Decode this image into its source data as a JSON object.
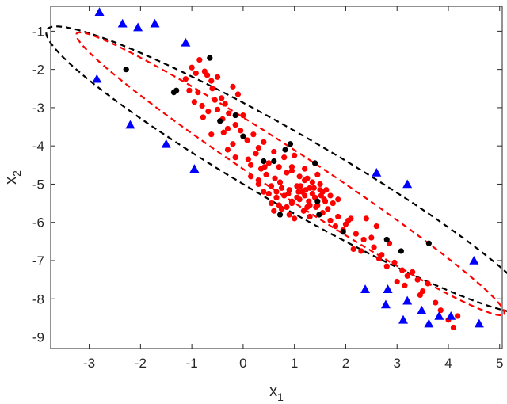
{
  "chart_data": {
    "type": "scatter",
    "xlabel": "x",
    "xlabel_sub": "1",
    "ylabel": "x",
    "ylabel_sub": "2",
    "xlim": [
      -3.75,
      5.05
    ],
    "ylim": [
      -9.3,
      -0.35
    ],
    "xticks": [
      -3,
      -2,
      -1,
      0,
      1,
      2,
      3,
      4,
      5
    ],
    "yticks": [
      -9,
      -8,
      -7,
      -6,
      -5,
      -4,
      -3,
      -2,
      -1
    ],
    "grid": false,
    "box": true,
    "colors": {
      "red": "#ff0000",
      "black": "#000000",
      "blue": "#0000ff",
      "axis": "#262626"
    },
    "ellipses": [
      {
        "color": "#000000",
        "center": [
          0.92,
          -4.63
        ],
        "semi_major": 6.0,
        "semi_minor": 0.86,
        "angle_deg": -38.0
      },
      {
        "color": "#ff0000",
        "center": [
          0.92,
          -4.73
        ],
        "semi_major": 5.55,
        "semi_minor": 0.52,
        "angle_deg": -41.5
      }
    ],
    "series": [
      {
        "marker": "circle",
        "color": "#ff0000",
        "x": [
          -1.0,
          -1.12,
          -0.85,
          -0.92,
          -0.75,
          -0.7,
          -0.62,
          -1.05,
          -0.95,
          -0.8,
          -0.6,
          -0.5,
          -0.88,
          -0.78,
          -0.55,
          -0.42,
          -0.5,
          -0.35,
          -0.68,
          -0.4,
          -0.28,
          -0.2,
          -0.1,
          -0.45,
          -0.3,
          -0.15,
          0.0,
          -0.62,
          -0.38,
          -0.2,
          -0.05,
          0.08,
          -0.3,
          -0.15,
          0.2,
          0.3,
          0.1,
          0.25,
          0.4,
          0.15,
          0.35,
          0.5,
          0.6,
          0.3,
          0.45,
          0.55,
          0.7,
          0.8,
          0.62,
          0.75,
          0.85,
          0.95,
          1.0,
          0.5,
          0.65,
          0.9,
          1.1,
          1.2,
          0.3,
          0.55,
          0.8,
          1.05,
          1.25,
          1.35,
          1.45,
          0.4,
          0.7,
          0.95,
          1.15,
          1.3,
          1.5,
          0.6,
          0.85,
          1.05,
          1.2,
          1.35,
          1.5,
          1.6,
          0.75,
          0.95,
          1.1,
          1.25,
          1.4,
          1.55,
          1.7,
          0.9,
          1.0,
          1.18,
          1.3,
          1.45,
          1.65,
          1.75,
          1.85,
          1.12,
          1.22,
          1.38,
          1.52,
          1.28,
          1.42,
          1.58,
          0.65,
          1.55,
          1.7,
          1.85,
          2.0,
          1.95,
          2.1,
          1.8,
          2.2,
          2.35,
          2.5,
          2.05,
          2.55,
          2.7,
          2.85,
          2.3,
          2.65,
          2.8,
          2.95,
          3.1,
          3.2,
          3.0,
          3.15,
          3.3,
          3.4,
          3.5,
          3.6,
          3.45,
          3.75,
          3.85,
          4.0,
          4.1,
          4.18,
          0.15,
          0.42,
          0.72,
          0.95,
          1.2,
          1.08,
          1.3,
          0.88,
          1.62,
          2.4,
          2.6,
          2.15
        ],
        "y": [
          -1.95,
          -2.25,
          -1.75,
          -2.1,
          -2.05,
          -2.15,
          -2.3,
          -2.55,
          -2.85,
          -2.95,
          -2.5,
          -2.2,
          -2.6,
          -3.25,
          -2.8,
          -2.75,
          -3.05,
          -2.9,
          -3.1,
          -3.3,
          -3.15,
          -2.45,
          -2.65,
          -3.35,
          -3.55,
          -3.45,
          -3.2,
          -3.7,
          -3.65,
          -3.95,
          -3.6,
          -3.85,
          -4.1,
          -4.3,
          -3.7,
          -4.05,
          -4.35,
          -4.2,
          -3.9,
          -4.5,
          -4.6,
          -4.45,
          -4.15,
          -4.9,
          -4.75,
          -5.05,
          -4.55,
          -4.3,
          -4.85,
          -5.1,
          -4.7,
          -4.55,
          -4.25,
          -5.25,
          -5.35,
          -5.15,
          -4.8,
          -4.6,
          -5.0,
          -5.5,
          -5.3,
          -5.05,
          -4.85,
          -4.95,
          -4.75,
          -5.2,
          -5.55,
          -5.45,
          -5.2,
          -5.1,
          -5.0,
          -5.7,
          -5.6,
          -5.35,
          -5.3,
          -5.25,
          -5.15,
          -5.45,
          -5.65,
          -5.5,
          -5.4,
          -5.6,
          -5.35,
          -5.2,
          -5.3,
          -5.8,
          -5.9,
          -5.7,
          -5.85,
          -5.55,
          -5.65,
          -5.5,
          -5.4,
          -5.05,
          -5.15,
          -5.1,
          -5.3,
          -5.45,
          -5.6,
          -5.4,
          -5.2,
          -5.75,
          -5.95,
          -5.85,
          -6.05,
          -6.2,
          -5.9,
          -6.1,
          -6.3,
          -6.45,
          -6.4,
          -5.95,
          -6.65,
          -6.85,
          -6.55,
          -6.75,
          -6.95,
          -7.15,
          -7.05,
          -7.25,
          -7.4,
          -7.55,
          -7.65,
          -7.3,
          -7.5,
          -7.8,
          -7.6,
          -7.9,
          -8.1,
          -8.3,
          -8.55,
          -8.75,
          -8.45,
          -4.8,
          -4.55,
          -4.95,
          -4.65,
          -4.9,
          -5.2,
          -5.55,
          -5.25,
          -5.15,
          -5.9,
          -6.1,
          -6.7
        ]
      },
      {
        "marker": "circle",
        "color": "#000000",
        "x": [
          -2.28,
          -1.35,
          -1.3,
          -0.45,
          -0.15,
          0.0,
          0.4,
          0.6,
          0.82,
          0.92,
          1.4,
          1.45,
          1.48,
          0.72,
          1.95,
          2.8,
          3.08,
          3.62,
          -0.65
        ],
        "y": [
          -2.0,
          -2.6,
          -2.55,
          -3.35,
          -3.2,
          -3.75,
          -4.4,
          -4.4,
          -4.1,
          -3.95,
          -4.45,
          -5.45,
          -5.8,
          -5.8,
          -6.25,
          -6.45,
          -6.75,
          -6.55,
          -1.7
        ]
      },
      {
        "marker": "triangle",
        "color": "#0000ff",
        "x": [
          -2.8,
          -2.35,
          -2.05,
          -1.72,
          -1.12,
          -2.85,
          -2.2,
          -1.5,
          -0.95,
          2.6,
          3.2,
          4.5,
          2.38,
          2.82,
          2.78,
          3.2,
          3.12,
          3.48,
          3.62,
          3.82,
          4.05,
          4.6
        ],
        "y": [
          -0.5,
          -0.8,
          -0.9,
          -0.8,
          -1.3,
          -2.25,
          -3.45,
          -3.95,
          -4.6,
          -4.7,
          -5.0,
          -7.0,
          -7.75,
          -7.75,
          -8.15,
          -8.05,
          -8.55,
          -8.3,
          -8.65,
          -8.45,
          -8.45,
          -8.65
        ]
      }
    ]
  }
}
